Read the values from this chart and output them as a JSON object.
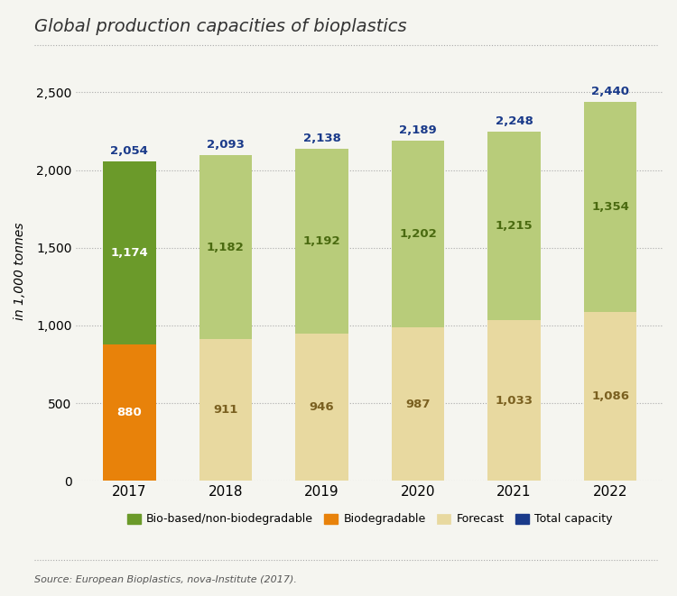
{
  "title": "Global production capacities of bioplastics",
  "ylabel": "in 1,000 tonnes",
  "source": "Source: European Bioplastics, nova-Institute (2017).",
  "years": [
    "2017",
    "2018",
    "2019",
    "2020",
    "2021",
    "2022"
  ],
  "biodegradable": [
    880,
    0,
    0,
    0,
    0,
    0
  ],
  "bio_based": [
    1174,
    0,
    0,
    0,
    0,
    0
  ],
  "forecast_bottom": [
    0,
    911,
    946,
    987,
    1033,
    1086
  ],
  "forecast_top": [
    0,
    1182,
    1192,
    1202,
    1215,
    1354
  ],
  "totals": [
    2054,
    2093,
    2138,
    2189,
    2248,
    2440
  ],
  "biodegradable_labels": [
    880,
    911,
    946,
    987,
    1033,
    1086
  ],
  "bio_based_labels": [
    1174,
    1182,
    1192,
    1202,
    1215,
    1354
  ],
  "color_biodegradable": "#E8820A",
  "color_bio_based": "#6B9A2A",
  "color_forecast_bottom": "#E8D9A0",
  "color_forecast_top": "#B8CC7A",
  "color_total": "#1A3A8A",
  "background_color": "#F5F5F0",
  "ylim": [
    0,
    2700
  ],
  "yticks": [
    0,
    500,
    1000,
    1500,
    2000,
    2500
  ],
  "legend_labels": [
    "Bio-based/non-biodegradable",
    "Biodegradable",
    "Forecast",
    "Total capacity"
  ]
}
